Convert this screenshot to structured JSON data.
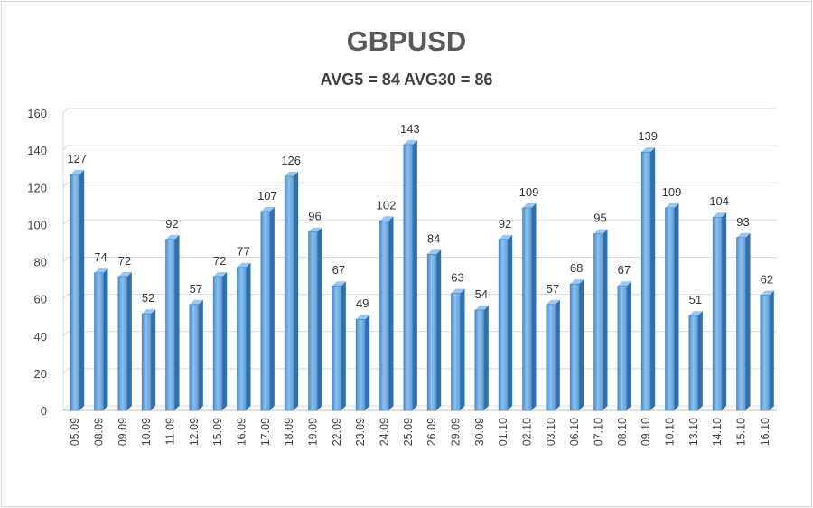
{
  "chart_data": {
    "type": "bar",
    "title": "GBPUSD",
    "subtitle": "AVG5 = 84 AVG30 = 86",
    "categories": [
      "05.09",
      "08.09",
      "09.09",
      "10.09",
      "11.09",
      "12.09",
      "15.09",
      "16.09",
      "17.09",
      "18.09",
      "19.09",
      "22.09",
      "23.09",
      "24.09",
      "25.09",
      "26.09",
      "29.09",
      "30.09",
      "01.10",
      "02.10",
      "03.10",
      "06.10",
      "07.10",
      "08.10",
      "09.10",
      "10.10",
      "13.10",
      "14.10",
      "15.10",
      "16.10"
    ],
    "values": [
      127,
      74,
      72,
      52,
      92,
      57,
      72,
      77,
      107,
      126,
      96,
      67,
      49,
      102,
      143,
      84,
      63,
      54,
      92,
      109,
      57,
      68,
      95,
      67,
      139,
      109,
      51,
      104,
      93,
      62
    ],
    "ylim": [
      0,
      160
    ],
    "yticks": [
      0,
      20,
      40,
      60,
      80,
      100,
      120,
      140,
      160
    ],
    "grid": true,
    "legend": "none",
    "bar_color": "#5b9bd5"
  }
}
